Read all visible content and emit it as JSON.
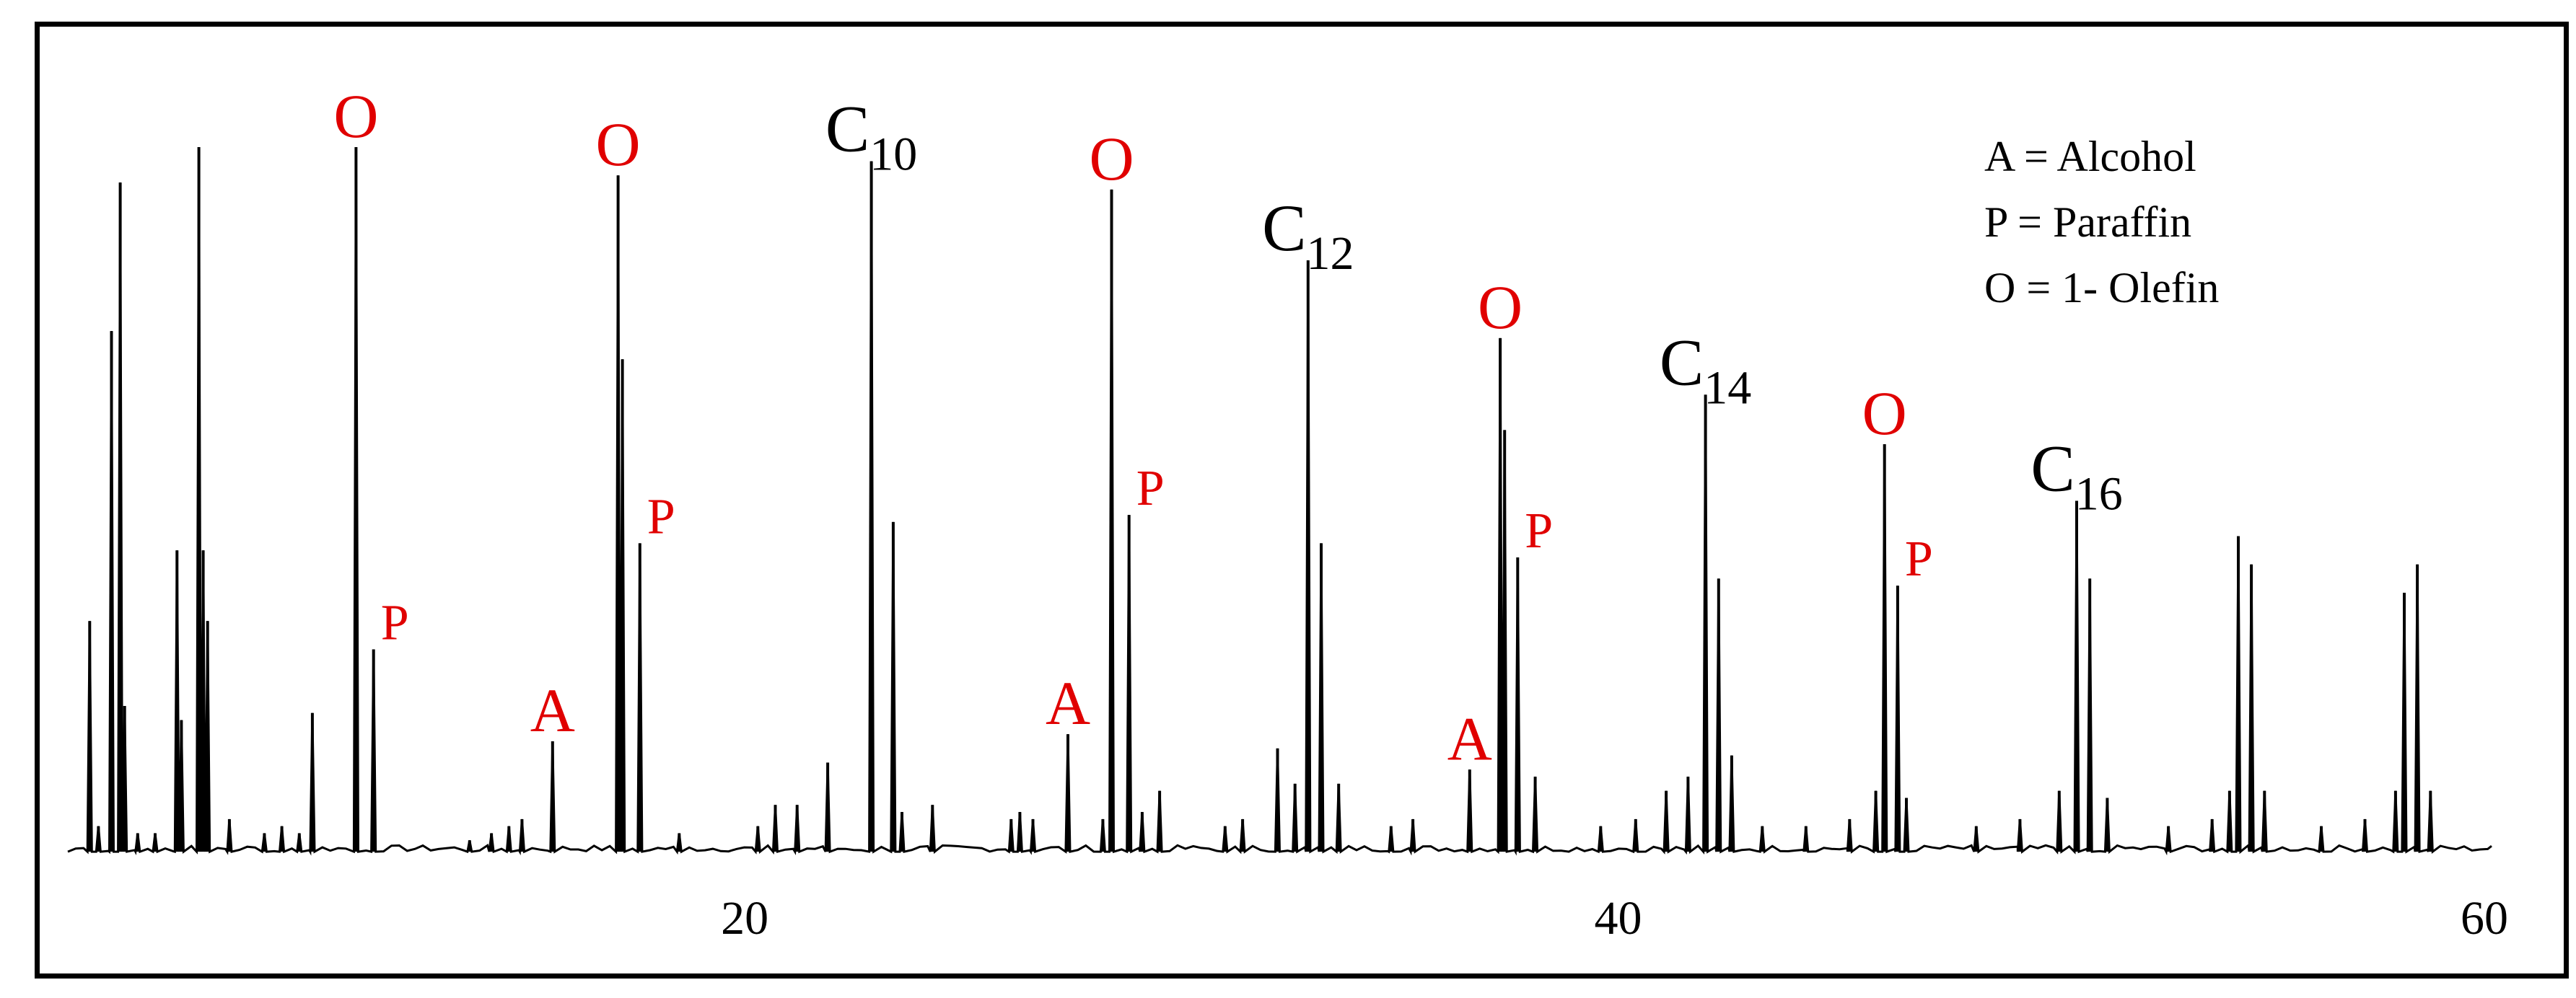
{
  "chart_data": {
    "type": "line",
    "title": "",
    "xlabel": "",
    "ylabel": "",
    "xlim": [
      4.5,
      60
    ],
    "ylim": [
      0,
      100
    ],
    "x_ticks": [
      "20",
      "40",
      "60"
    ],
    "grid": false,
    "line_color": "#000000",
    "label_colors": {
      "red": "#e00000",
      "black": "#000000"
    },
    "legend": {
      "placement": "top-right",
      "entries": [
        "A = Alcohol",
        "P = Paraffin",
        "O = 1- Olefin"
      ]
    },
    "baseline": 0.4,
    "peaks": [
      {
        "x": 5.0,
        "h": 33
      },
      {
        "x": 5.2,
        "h": 4
      },
      {
        "x": 5.5,
        "h": 74
      },
      {
        "x": 5.7,
        "h": 95
      },
      {
        "x": 5.8,
        "h": 21
      },
      {
        "x": 6.1,
        "h": 3
      },
      {
        "x": 6.5,
        "h": 3
      },
      {
        "x": 7.0,
        "h": 43
      },
      {
        "x": 7.1,
        "h": 19
      },
      {
        "x": 7.5,
        "h": 100
      },
      {
        "x": 7.6,
        "h": 43
      },
      {
        "x": 7.7,
        "h": 33
      },
      {
        "x": 8.2,
        "h": 5
      },
      {
        "x": 9.0,
        "h": 3
      },
      {
        "x": 9.4,
        "h": 4
      },
      {
        "x": 9.8,
        "h": 3
      },
      {
        "x": 10.1,
        "h": 20
      },
      {
        "x": 11.1,
        "h": 100
      },
      {
        "x": 11.5,
        "h": 29
      },
      {
        "x": 13.7,
        "h": 2
      },
      {
        "x": 14.2,
        "h": 3
      },
      {
        "x": 14.6,
        "h": 4
      },
      {
        "x": 14.9,
        "h": 5
      },
      {
        "x": 15.6,
        "h": 16
      },
      {
        "x": 17.1,
        "h": 96
      },
      {
        "x": 17.2,
        "h": 70
      },
      {
        "x": 17.6,
        "h": 44
      },
      {
        "x": 18.5,
        "h": 3
      },
      {
        "x": 20.3,
        "h": 4
      },
      {
        "x": 20.7,
        "h": 7
      },
      {
        "x": 21.2,
        "h": 7
      },
      {
        "x": 21.9,
        "h": 13
      },
      {
        "x": 22.9,
        "h": 98
      },
      {
        "x": 23.4,
        "h": 47
      },
      {
        "x": 23.6,
        "h": 6
      },
      {
        "x": 24.3,
        "h": 7
      },
      {
        "x": 26.1,
        "h": 5
      },
      {
        "x": 26.3,
        "h": 6
      },
      {
        "x": 26.6,
        "h": 5
      },
      {
        "x": 27.4,
        "h": 17
      },
      {
        "x": 28.2,
        "h": 5
      },
      {
        "x": 28.4,
        "h": 94
      },
      {
        "x": 28.8,
        "h": 48
      },
      {
        "x": 29.1,
        "h": 6
      },
      {
        "x": 29.5,
        "h": 9
      },
      {
        "x": 31.0,
        "h": 4
      },
      {
        "x": 31.4,
        "h": 5
      },
      {
        "x": 32.2,
        "h": 15
      },
      {
        "x": 32.6,
        "h": 10
      },
      {
        "x": 32.9,
        "h": 84
      },
      {
        "x": 33.2,
        "h": 44
      },
      {
        "x": 33.6,
        "h": 10
      },
      {
        "x": 34.8,
        "h": 4
      },
      {
        "x": 35.3,
        "h": 5
      },
      {
        "x": 36.6,
        "h": 12
      },
      {
        "x": 37.3,
        "h": 73
      },
      {
        "x": 37.4,
        "h": 60
      },
      {
        "x": 37.7,
        "h": 42
      },
      {
        "x": 38.1,
        "h": 11
      },
      {
        "x": 39.6,
        "h": 4
      },
      {
        "x": 40.4,
        "h": 5
      },
      {
        "x": 41.1,
        "h": 9
      },
      {
        "x": 41.6,
        "h": 11
      },
      {
        "x": 42.0,
        "h": 65
      },
      {
        "x": 42.3,
        "h": 39
      },
      {
        "x": 42.6,
        "h": 14
      },
      {
        "x": 43.3,
        "h": 4
      },
      {
        "x": 44.3,
        "h": 4
      },
      {
        "x": 45.3,
        "h": 5
      },
      {
        "x": 45.9,
        "h": 9
      },
      {
        "x": 46.1,
        "h": 58
      },
      {
        "x": 46.4,
        "h": 38
      },
      {
        "x": 46.6,
        "h": 8
      },
      {
        "x": 48.2,
        "h": 4
      },
      {
        "x": 49.2,
        "h": 5
      },
      {
        "x": 50.1,
        "h": 9
      },
      {
        "x": 50.5,
        "h": 50
      },
      {
        "x": 50.8,
        "h": 39
      },
      {
        "x": 51.2,
        "h": 8
      },
      {
        "x": 52.6,
        "h": 4
      },
      {
        "x": 53.6,
        "h": 5
      },
      {
        "x": 54.0,
        "h": 9
      },
      {
        "x": 54.2,
        "h": 45
      },
      {
        "x": 54.5,
        "h": 41
      },
      {
        "x": 54.8,
        "h": 9
      },
      {
        "x": 56.1,
        "h": 4
      },
      {
        "x": 57.1,
        "h": 5
      },
      {
        "x": 57.8,
        "h": 9
      },
      {
        "x": 58.0,
        "h": 37
      },
      {
        "x": 58.3,
        "h": 41
      },
      {
        "x": 58.6,
        "h": 9
      }
    ],
    "annotations": [
      {
        "text": "O",
        "sub": "",
        "color": "red",
        "x": 11.1,
        "h": 100
      },
      {
        "text": "P",
        "sub": "",
        "color": "red",
        "x": 11.5,
        "h": 29
      },
      {
        "text": "A",
        "sub": "",
        "color": "red",
        "x": 15.6,
        "h": 16
      },
      {
        "text": "O",
        "sub": "",
        "color": "red",
        "x": 17.1,
        "h": 96
      },
      {
        "text": "P",
        "sub": "",
        "color": "red",
        "x": 17.6,
        "h": 44
      },
      {
        "text": "C",
        "sub": "10",
        "color": "black",
        "x": 22.9,
        "h": 98
      },
      {
        "text": "A",
        "sub": "",
        "color": "red",
        "x": 27.4,
        "h": 17
      },
      {
        "text": "O",
        "sub": "",
        "color": "red",
        "x": 28.4,
        "h": 94
      },
      {
        "text": "P",
        "sub": "",
        "color": "red",
        "x": 28.8,
        "h": 48
      },
      {
        "text": "C",
        "sub": "12",
        "color": "black",
        "x": 32.9,
        "h": 84
      },
      {
        "text": "A",
        "sub": "",
        "color": "red",
        "x": 36.6,
        "h": 12
      },
      {
        "text": "O",
        "sub": "",
        "color": "red",
        "x": 37.3,
        "h": 73
      },
      {
        "text": "P",
        "sub": "",
        "color": "red",
        "x": 37.7,
        "h": 42
      },
      {
        "text": "C",
        "sub": "14",
        "color": "black",
        "x": 42.0,
        "h": 65
      },
      {
        "text": "O",
        "sub": "",
        "color": "red",
        "x": 46.1,
        "h": 58
      },
      {
        "text": "P",
        "sub": "",
        "color": "red",
        "x": 46.4,
        "h": 38
      },
      {
        "text": "C",
        "sub": "16",
        "color": "black",
        "x": 50.5,
        "h": 50
      }
    ]
  }
}
